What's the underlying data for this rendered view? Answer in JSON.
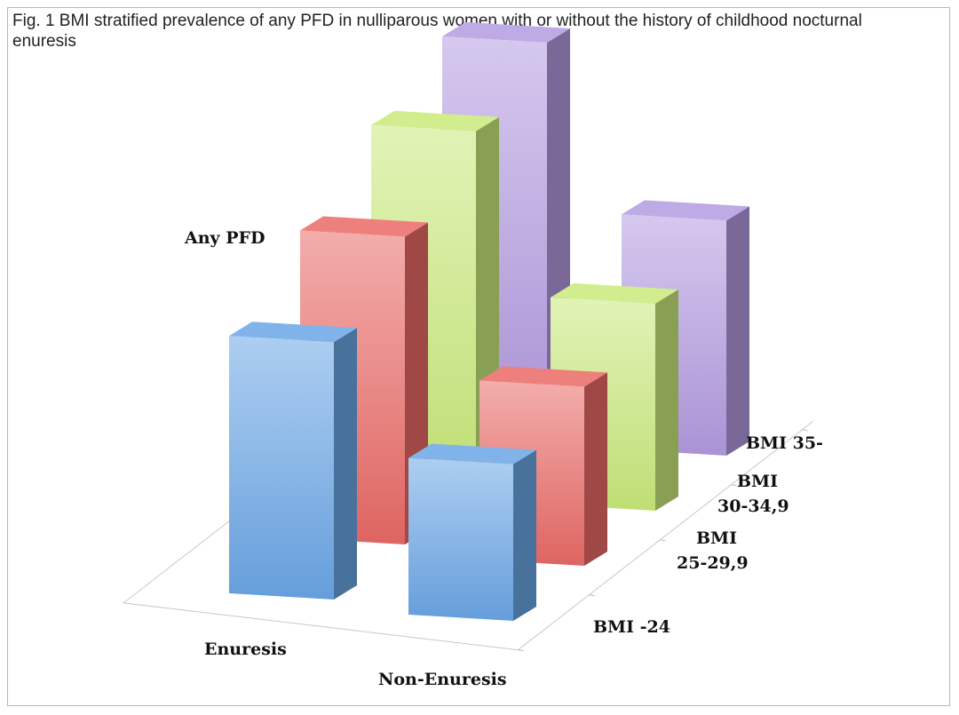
{
  "figure_title": "Fig. 1 BMI stratified prevalence of any PFD in nulliparous women with or without the history of childhood nocturnal enuresis",
  "chart_data": {
    "type": "bar",
    "projection": "3d",
    "zlabel": "Any PFD",
    "groups": [
      "Enuresis",
      "Non-Enuresis"
    ],
    "series": [
      {
        "name": "BMI -24",
        "color": "#6aa6e6",
        "values": [
          4.6,
          2.8
        ]
      },
      {
        "name": "BMI 25-29,9",
        "color": "#ea6a66",
        "values": [
          5.5,
          3.2
        ]
      },
      {
        "name": "BMI 30-34,9",
        "color": "#c9ea7a",
        "values": [
          6.4,
          3.7
        ]
      },
      {
        "name": "BMI 35-",
        "color": "#b39be0",
        "values": [
          7.0,
          4.2
        ]
      }
    ],
    "grid": false,
    "legend": "none"
  }
}
